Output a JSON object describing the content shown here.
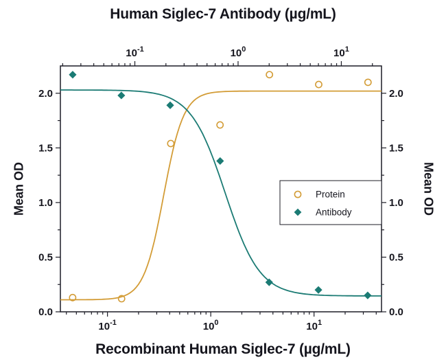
{
  "figure": {
    "title_top": "Human Siglec-7 Antibody (µg/mL)",
    "xlabel_bottom": "Recombinant Human Siglec-7 (µg/mL)",
    "ylabel_left": "Mean OD",
    "ylabel_right": "Mean OD"
  },
  "style": {
    "background": "#ffffff",
    "text_color": "#15151d",
    "frame_color": "#1c1c26",
    "protein_color": "#D39C36",
    "antibody_color": "#1B7B74"
  },
  "chart_data": {
    "type": "scatter",
    "x_scale": "log",
    "grid": false,
    "axes": {
      "bottom": {
        "label": "Recombinant Human Siglec-7 (µg/mL)",
        "range": [
          0.035,
          45
        ],
        "ticks": [
          0.1,
          1,
          10
        ]
      },
      "top": {
        "label": "Human Siglec-7 Antibody (µg/mL)",
        "range": [
          0.019,
          24.5
        ],
        "ticks": [
          0.1,
          1,
          10
        ]
      },
      "y": {
        "label": "Mean OD",
        "range": [
          0,
          2.25
        ],
        "ticks": [
          0,
          0.5,
          1,
          1.5,
          2
        ],
        "tick_labels": [
          "0.0",
          "0.5",
          "1.0",
          "1.5",
          "2.0"
        ]
      }
    },
    "series": [
      {
        "name": "Protein",
        "axis": "bottom",
        "marker": "open-circle",
        "color": "#D39C36",
        "points": [
          [
            0.046,
            0.13
          ],
          [
            0.137,
            0.12
          ],
          [
            0.41,
            1.54
          ],
          [
            1.23,
            1.71
          ],
          [
            3.7,
            2.17
          ],
          [
            11.1,
            2.08
          ],
          [
            33.3,
            2.1
          ]
        ],
        "fit": {
          "min": 0.11,
          "max": 2.02,
          "ec50": 0.35,
          "hill": -4.5
        }
      },
      {
        "name": "Antibody",
        "axis": "top",
        "marker": "filled-diamond",
        "color": "#1B7B74",
        "points": [
          [
            0.025,
            2.17
          ],
          [
            0.074,
            1.98
          ],
          [
            0.22,
            1.89
          ],
          [
            0.67,
            1.38
          ],
          [
            2.0,
            0.27
          ],
          [
            6.0,
            0.2
          ],
          [
            18,
            0.15
          ]
        ],
        "fit": {
          "min": 0.145,
          "max": 2.03,
          "ec50": 0.75,
          "hill": 2.6
        }
      }
    ],
    "legend": {
      "position": "right-center",
      "items": [
        {
          "label": "Protein",
          "marker": "open-circle"
        },
        {
          "label": "Antibody",
          "marker": "filled-diamond"
        }
      ]
    }
  }
}
